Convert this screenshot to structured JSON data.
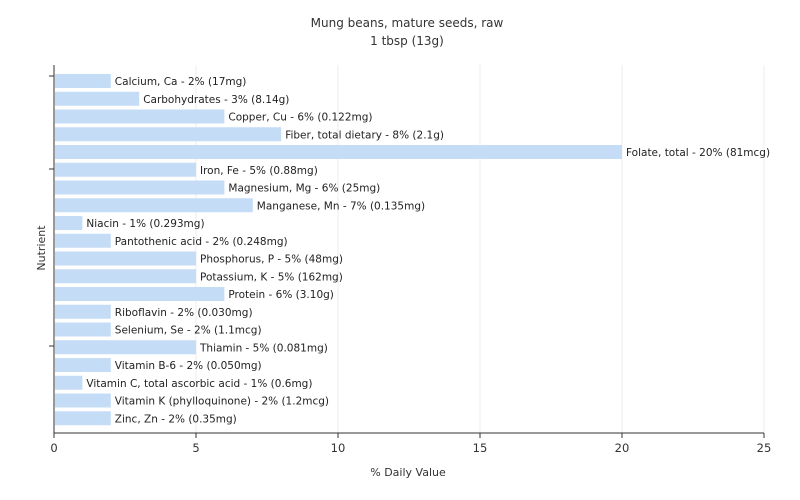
{
  "chart_data": {
    "type": "bar",
    "orientation": "horizontal",
    "title": "Mung beans, mature seeds, raw",
    "subtitle": "1 tbsp (13g)",
    "xlabel": "% Daily Value",
    "ylabel": "Nutrient",
    "xlim": [
      0,
      25
    ],
    "xticks": [
      0,
      5,
      10,
      15,
      20,
      25
    ],
    "grid": true,
    "bar_color": "#c5dcf7",
    "categories": [
      "Calcium, Ca - 2% (17mg)",
      "Carbohydrates - 3% (8.14g)",
      "Copper, Cu - 6% (0.122mg)",
      "Fiber, total dietary - 8% (2.1g)",
      "Folate, total - 20% (81mcg)",
      "Iron, Fe - 5% (0.88mg)",
      "Magnesium, Mg - 6% (25mg)",
      "Manganese, Mn - 7% (0.135mg)",
      "Niacin - 1% (0.293mg)",
      "Pantothenic acid - 2% (0.248mg)",
      "Phosphorus, P - 5% (48mg)",
      "Potassium, K - 5% (162mg)",
      "Protein - 6% (3.10g)",
      "Riboflavin - 2% (0.030mg)",
      "Selenium, Se - 2% (1.1mcg)",
      "Thiamin - 5% (0.081mg)",
      "Vitamin B-6 - 2% (0.050mg)",
      "Vitamin C, total ascorbic acid - 1% (0.6mg)",
      "Vitamin K (phylloquinone) - 2% (1.2mcg)",
      "Zinc, Zn - 2% (0.35mg)"
    ],
    "values": [
      2,
      3,
      6,
      8,
      20,
      5,
      6,
      7,
      1,
      2,
      5,
      5,
      6,
      2,
      2,
      5,
      2,
      1,
      2,
      2
    ]
  }
}
